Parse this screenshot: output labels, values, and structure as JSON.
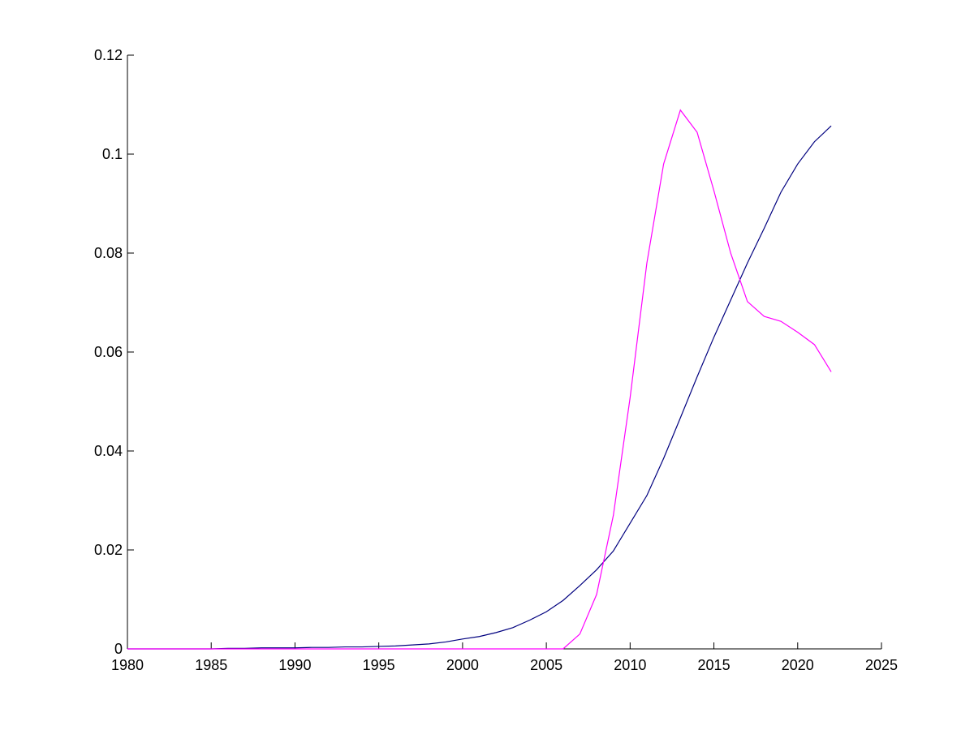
{
  "chart_data": {
    "type": "line",
    "x": [
      1980,
      1981,
      1982,
      1983,
      1984,
      1985,
      1986,
      1987,
      1988,
      1989,
      1990,
      1991,
      1992,
      1993,
      1994,
      1995,
      1996,
      1997,
      1998,
      1999,
      2000,
      2001,
      2002,
      2003,
      2004,
      2005,
      2006,
      2007,
      2008,
      2009,
      2010,
      2011,
      2012,
      2013,
      2014,
      2015,
      2016,
      2017,
      2018,
      2019,
      2020,
      2021,
      2022
    ],
    "series": [
      {
        "color": "#00007f",
        "values": [
          0,
          0,
          0,
          0,
          0,
          0,
          0.0001,
          0.0001,
          0.0002,
          0.0002,
          0.0002,
          0.0003,
          0.0003,
          0.0004,
          0.0004,
          0.0005,
          0.0006,
          0.0008,
          0.001,
          0.0014,
          0.002,
          0.0025,
          0.0033,
          0.0043,
          0.0058,
          0.0075,
          0.0098,
          0.0128,
          0.016,
          0.0198,
          0.0254,
          0.031,
          0.0385,
          0.0467,
          0.055,
          0.063,
          0.0705,
          0.078,
          0.085,
          0.0923,
          0.098,
          0.1025,
          0.1057
        ]
      },
      {
        "color": "#ff00ff",
        "values": [
          0,
          0,
          0,
          0,
          0,
          0,
          0,
          0,
          0,
          0,
          0,
          0,
          0,
          0,
          0,
          0,
          0,
          0,
          0,
          0,
          0,
          0,
          0,
          0,
          0,
          0,
          0,
          0.003,
          0.011,
          0.027,
          0.0508,
          0.078,
          0.098,
          0.1089,
          0.1044,
          0.0926,
          0.08,
          0.0702,
          0.0672,
          0.0662,
          0.064,
          0.0615,
          0.056
        ]
      }
    ],
    "xlim": [
      1980,
      2025
    ],
    "xticks": [
      1980,
      1985,
      1990,
      1995,
      2000,
      2005,
      2010,
      2015,
      2020,
      2025
    ],
    "ylim": [
      0,
      0.12
    ],
    "yticks": [
      0,
      0.02,
      0.04,
      0.06,
      0.08,
      0.1,
      0.12
    ]
  }
}
